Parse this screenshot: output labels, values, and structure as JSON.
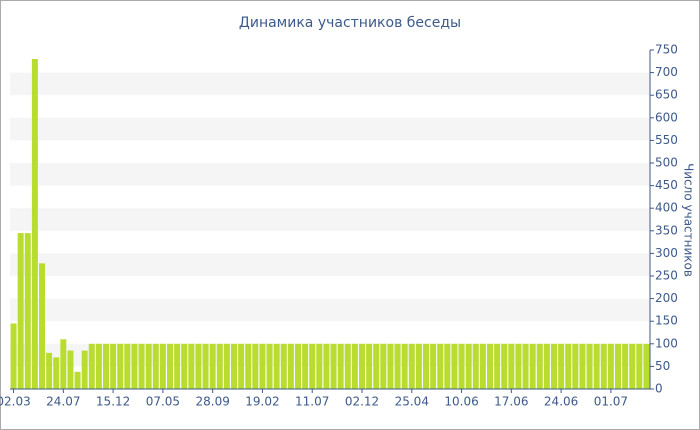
{
  "chart_data": {
    "type": "bar",
    "title": "Динамика участников беседы",
    "y_label": "Число участников",
    "categories": [
      "02.03",
      null,
      null,
      null,
      null,
      null,
      null,
      "24.07",
      null,
      null,
      null,
      null,
      null,
      null,
      "15.12",
      null,
      null,
      null,
      null,
      null,
      null,
      "07.05",
      null,
      null,
      null,
      null,
      null,
      null,
      "28.09",
      null,
      null,
      null,
      null,
      null,
      null,
      "19.02",
      null,
      null,
      null,
      null,
      null,
      null,
      "11.07",
      null,
      null,
      null,
      null,
      null,
      null,
      "02.12",
      null,
      null,
      null,
      null,
      null,
      null,
      "25.04",
      null,
      null,
      null,
      null,
      null,
      null,
      "10.06",
      null,
      null,
      null,
      null,
      null,
      null,
      "17.06",
      null,
      null,
      null,
      null,
      null,
      null,
      "24.06",
      null,
      null,
      null,
      null,
      null,
      null,
      "01.07",
      null,
      null,
      null,
      null,
      null
    ],
    "values": [
      145,
      345,
      345,
      730,
      278,
      80,
      70,
      110,
      85,
      38,
      85,
      100,
      100,
      100,
      100,
      100,
      100,
      100,
      100,
      100,
      100,
      100,
      100,
      100,
      100,
      100,
      100,
      100,
      100,
      100,
      100,
      100,
      100,
      100,
      100,
      100,
      100,
      100,
      100,
      100,
      100,
      100,
      100,
      100,
      100,
      100,
      100,
      100,
      100,
      100,
      100,
      100,
      100,
      100,
      100,
      100,
      100,
      100,
      100,
      100,
      100,
      100,
      100,
      100,
      100,
      100,
      100,
      100,
      100,
      100,
      100,
      100,
      100,
      100,
      100,
      100,
      100,
      100,
      100,
      100,
      100,
      100,
      100,
      100,
      100,
      100,
      100,
      100,
      100,
      100
    ],
    "color": "#b8dd2e",
    "ylim": [
      0,
      750
    ],
    "yticks": [
      0,
      50,
      100,
      150,
      200,
      250,
      300,
      350,
      400,
      450,
      500,
      550,
      600,
      650,
      700,
      750
    ],
    "y_axis_side": "right",
    "grid": "striped"
  }
}
